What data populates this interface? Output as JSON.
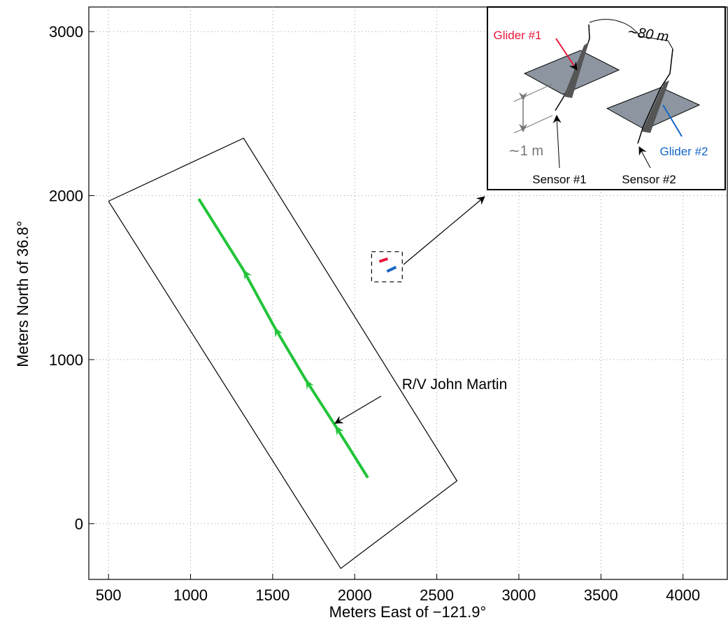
{
  "chart_data": {
    "type": "line",
    "xlabel": "Meters East of −121.9°",
    "ylabel": "Meters North of 36.8°",
    "xlim": [
      380,
      4270
    ],
    "ylim": [
      -340,
      3150
    ],
    "xticks": [
      500,
      1000,
      1500,
      2000,
      2500,
      3000,
      3500,
      4000
    ],
    "yticks": [
      0,
      1000,
      2000,
      3000
    ],
    "grid": true,
    "series": [
      {
        "color": "#22c43a",
        "x": [
          1050,
          1320,
          1510,
          1700,
          1880,
          2080
        ],
        "values": [
          1980,
          1550,
          1200,
          880,
          600,
          280
        ]
      },
      {
        "color": "#000000",
        "x": [
          500,
          1323,
          2623,
          1915,
          500
        ],
        "values": [
          1966,
          2350,
          261,
          -273,
          1966
        ]
      },
      {
        "color": "#000000",
        "dash": true,
        "x": [
          2103,
          2290,
          2290,
          2103,
          2103
        ],
        "values": [
          1658,
          1658,
          1474,
          1474,
          1658
        ]
      },
      {
        "color": "#e8173a",
        "x": [
          2150,
          2201
        ],
        "values": [
          1598,
          1615
        ]
      },
      {
        "color": "#1466c8",
        "x": [
          2197,
          2252
        ],
        "values": [
          1538,
          1564
        ]
      }
    ],
    "annotation": "R/V John Martin",
    "inset": {
      "glider_1": "Glider #1",
      "glider_2": "Glider #2",
      "spacing": "∼80 m",
      "depth": "∼1 m",
      "sensor_1": "Sensor #1",
      "sensor_2": "Sensor #2"
    }
  }
}
